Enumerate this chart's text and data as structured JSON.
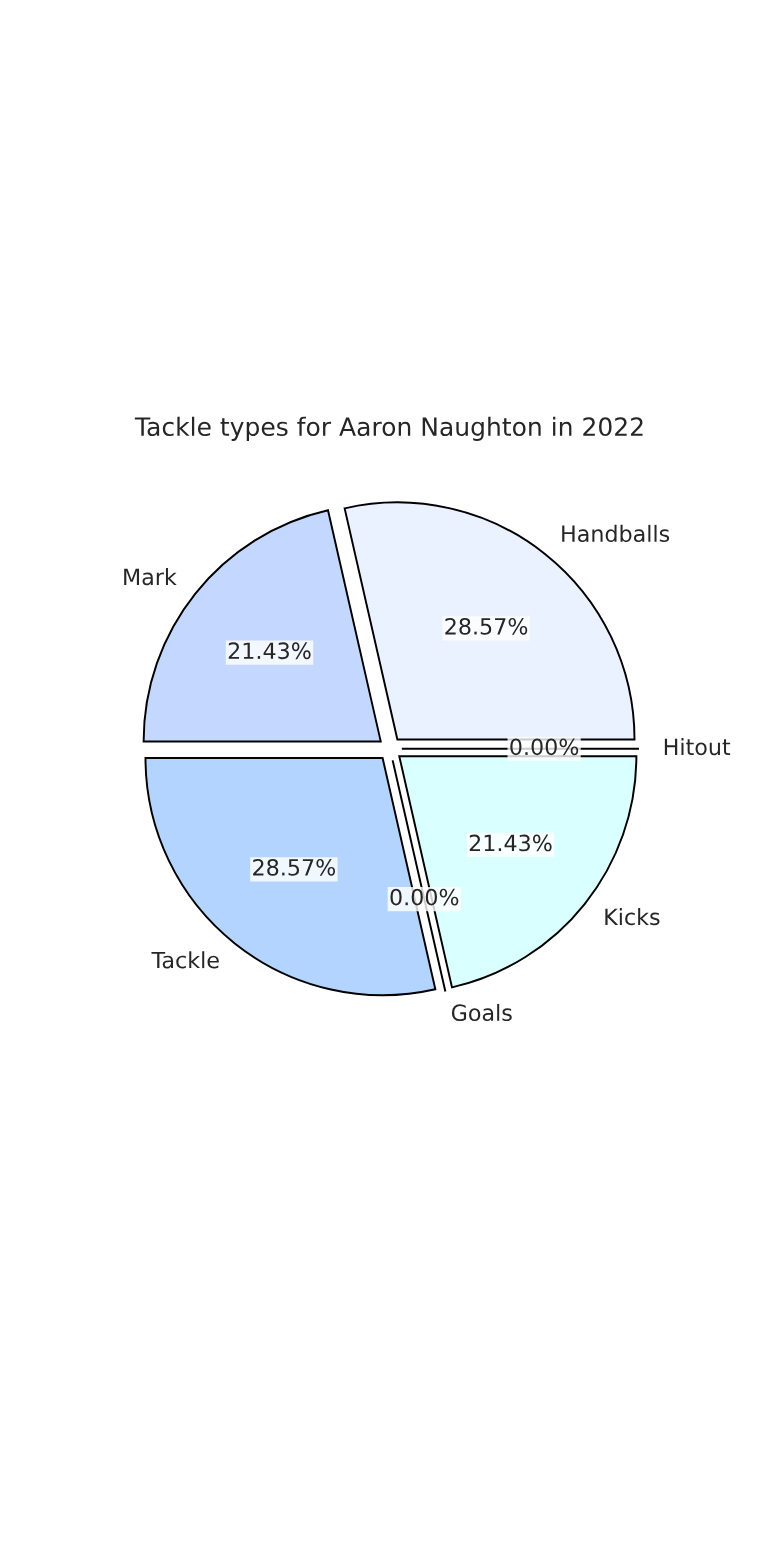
{
  "chart_data": {
    "type": "pie",
    "title": "Tackle types for Aaron Naughton in 2022",
    "categories": [
      "Hitout",
      "Kicks",
      "Goals",
      "Tackle",
      "Mark",
      "Handballs"
    ],
    "values": [
      0.0,
      21.43,
      0.0,
      28.57,
      21.43,
      28.57
    ],
    "value_labels": [
      "0.00%",
      "21.43%",
      "0.00%",
      "28.57%",
      "21.43%",
      "28.57%"
    ],
    "colors": [
      "#e0e0e0",
      "#d9ffff",
      "#f5f5f5",
      "#b3d4ff",
      "#c4d8ff",
      "#eaf1ff"
    ]
  }
}
